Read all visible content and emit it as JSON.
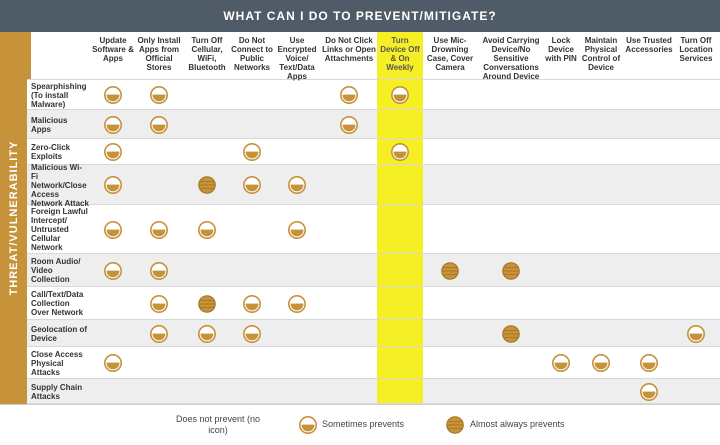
{
  "title": "WHAT CAN I DO TO PREVENT/MITIGATE?",
  "side_label": "THREAT/VULNERABILITY",
  "columns": [
    "Update Software & Apps",
    "Only Install Apps from Official Stores",
    "Turn Off Cellular, WiFi, Bluetooth",
    "Do Not Connect to Public Networks",
    "Use Encrypted Voice/ Text/Data Apps",
    "Do Not Click Links or Open Attachments",
    "Turn Device Off & On Weekly",
    "Use Mic-Drowning Case, Cover Camera",
    "Avoid Carrying Device/No Sensitive Conversations Around Device",
    "Lock Device with PIN",
    "Maintain Physical Control of Device",
    "Use Trusted Accessories",
    "Turn Off Location Services"
  ],
  "rows": [
    {
      "label": "Spearphishing (To install Malware)",
      "cells": [
        "S",
        "S",
        "",
        "",
        "",
        "S",
        "S",
        "",
        "",
        "",
        "",
        "",
        ""
      ]
    },
    {
      "label": "Malicious Apps",
      "cells": [
        "S",
        "S",
        "",
        "",
        "",
        "S",
        "",
        "",
        "",
        "",
        "",
        "",
        ""
      ]
    },
    {
      "label": "Zero-Click Exploits",
      "cells": [
        "S",
        "",
        "",
        "S",
        "",
        "",
        "S",
        "",
        "",
        "",
        "",
        "",
        ""
      ]
    },
    {
      "label": "Malicious Wi-Fi Network/Close Access Network Attack",
      "cells": [
        "S",
        "",
        "A",
        "S",
        "S",
        "",
        "",
        "",
        "",
        "",
        "",
        "",
        ""
      ]
    },
    {
      "label": "Foreign Lawful Intercept/ Untrusted Cellular Network",
      "cells": [
        "S",
        "S",
        "S",
        "",
        "S",
        "",
        "",
        "",
        "",
        "",
        "",
        "",
        ""
      ]
    },
    {
      "label": "Room Audio/ Video Collection",
      "cells": [
        "S",
        "S",
        "",
        "",
        "",
        "",
        "",
        "A",
        "A",
        "",
        "",
        "",
        ""
      ]
    },
    {
      "label": "Call/Text/Data Collection Over Network",
      "cells": [
        "",
        "S",
        "A",
        "S",
        "S",
        "",
        "",
        "",
        "",
        "",
        "",
        "",
        ""
      ]
    },
    {
      "label": "Geolocation of Device",
      "cells": [
        "",
        "S",
        "S",
        "S",
        "",
        "",
        "",
        "",
        "A",
        "",
        "",
        "",
        "S"
      ]
    },
    {
      "label": "Close Access Physical Attacks",
      "cells": [
        "S",
        "",
        "",
        "",
        "",
        "",
        "",
        "",
        "",
        "S",
        "S",
        "S",
        ""
      ]
    },
    {
      "label": "Supply Chain Attacks",
      "cells": [
        "",
        "",
        "",
        "",
        "",
        "",
        "",
        "",
        "",
        "",
        "",
        "S",
        ""
      ]
    }
  ],
  "legend": {
    "none": "Does not prevent (no icon)",
    "sometimes": "Sometimes prevents",
    "always": "Almost always prevents"
  },
  "colors": {
    "title_bar": "#4f5b66",
    "gold": "#c6923a",
    "highlight": "#f6ef26",
    "alt_row": "#eeeeee"
  }
}
